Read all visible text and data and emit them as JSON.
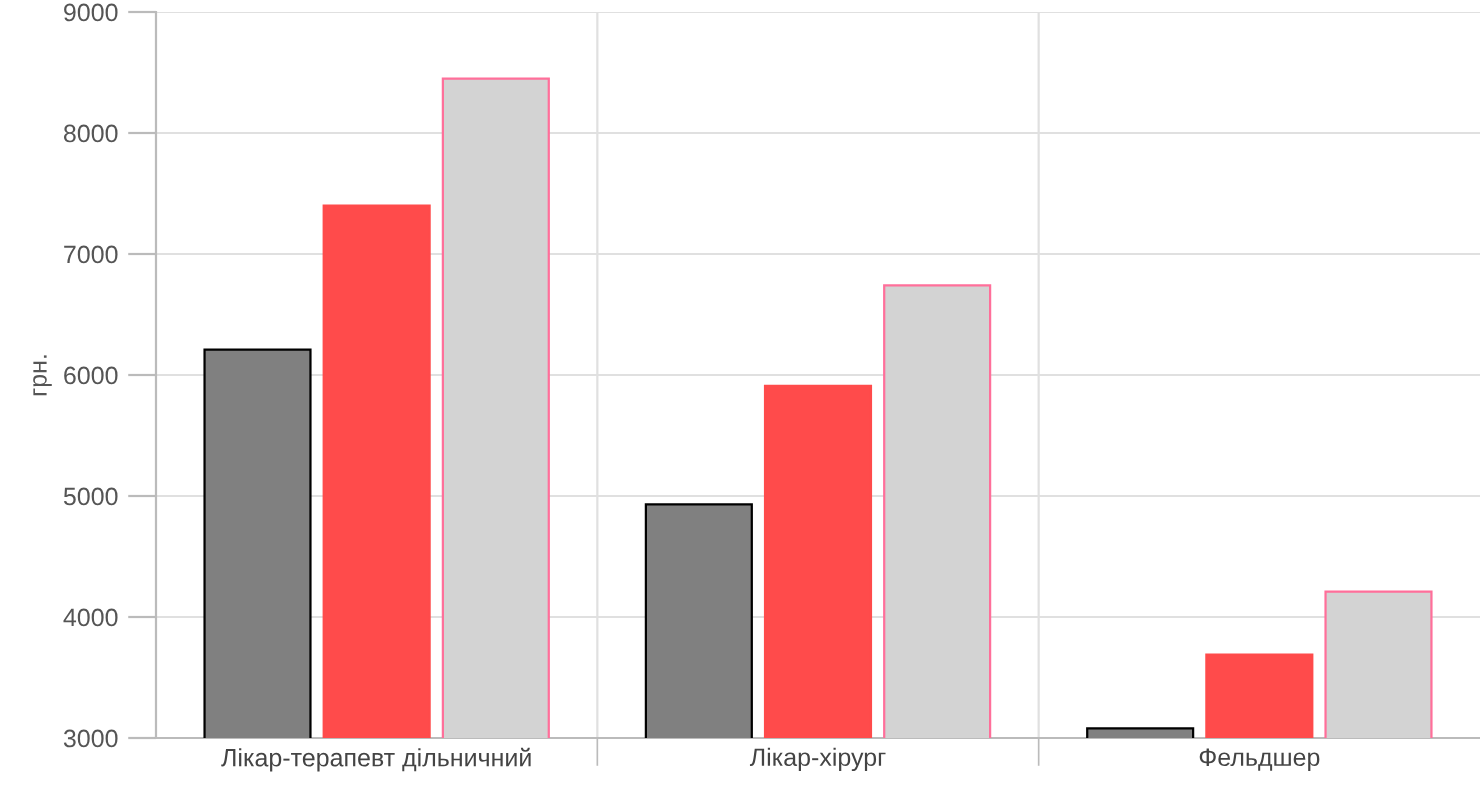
{
  "chart_data": {
    "type": "bar",
    "ylabel": "грн.",
    "categories": [
      "Лікар-терапевт дільничний",
      "Лікар-хірург",
      "Фельдшер"
    ],
    "series": [
      {
        "color": "#808080",
        "values": [
          6210,
          4930,
          3080
        ]
      },
      {
        "color": "#ff4b4b",
        "values": [
          7400,
          5910,
          3690
        ]
      },
      {
        "color": "#d3d3d3",
        "values": [
          8450,
          6740,
          4210
        ]
      }
    ],
    "ylim": [
      3000,
      9000
    ],
    "yticks": [
      3000,
      4000,
      5000,
      6000,
      7000,
      8000,
      9000
    ],
    "grid": true,
    "legend": false
  }
}
